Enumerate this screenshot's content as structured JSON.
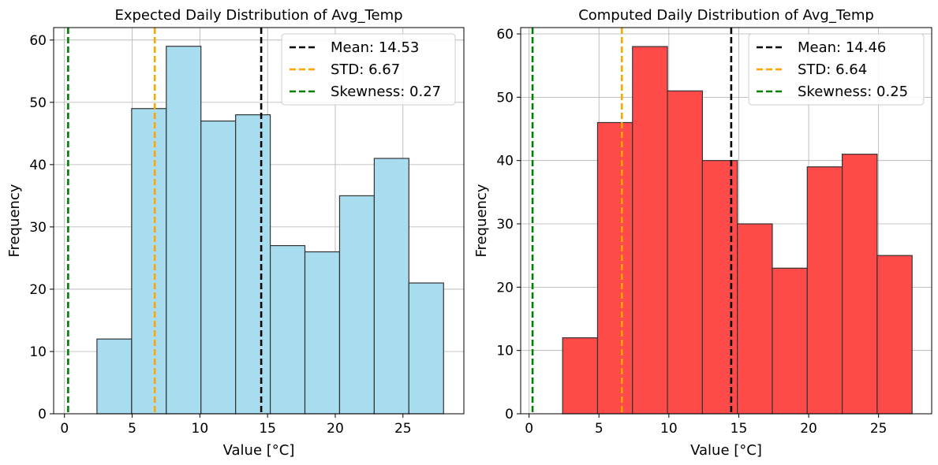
{
  "chart_data": [
    {
      "type": "bar",
      "title": "Expected Daily Distribution of Avg_Temp",
      "xlabel": "Value [°C]",
      "ylabel": "Frequency",
      "xlim": [
        -0.8,
        29.5
      ],
      "ylim": [
        0,
        62
      ],
      "xticks": [
        0,
        5,
        10,
        15,
        20,
        25
      ],
      "yticks": [
        0,
        10,
        20,
        30,
        40,
        50,
        60
      ],
      "grid": true,
      "legend_position": "top-right",
      "bar_color": "#a8dcef",
      "bin_edges": [
        2.4,
        4.96,
        7.52,
        10.08,
        12.64,
        15.2,
        17.76,
        20.32,
        22.88,
        25.44,
        28.0
      ],
      "values": [
        12,
        49,
        59,
        47,
        48,
        27,
        26,
        35,
        41,
        21
      ],
      "lines": [
        {
          "label": "Mean: 14.53",
          "x": 14.53,
          "color": "#000000"
        },
        {
          "label": "STD: 6.67",
          "x": 6.67,
          "color": "#ffa500"
        },
        {
          "label": "Skewness: 0.27",
          "x": 0.27,
          "color": "#008000"
        }
      ]
    },
    {
      "type": "bar",
      "title": "Computed Daily Distribution of Avg_Temp",
      "xlabel": "Value [°C]",
      "ylabel": "Frequency",
      "xlim": [
        -0.6,
        28.8
      ],
      "ylim": [
        0,
        61
      ],
      "xticks": [
        0,
        5,
        10,
        15,
        20,
        25
      ],
      "yticks": [
        0,
        10,
        20,
        30,
        40,
        50,
        60
      ],
      "grid": true,
      "legend_position": "top-right",
      "bar_color": "#ff4a4a",
      "bin_edges": [
        2.4,
        4.9,
        7.4,
        9.9,
        12.4,
        14.9,
        17.4,
        19.9,
        22.4,
        24.9,
        27.4
      ],
      "values": [
        12,
        46,
        58,
        51,
        40,
        30,
        23,
        39,
        41,
        25
      ],
      "lines": [
        {
          "label": "Mean: 14.46",
          "x": 14.46,
          "color": "#000000"
        },
        {
          "label": "STD: 6.64",
          "x": 6.64,
          "color": "#ffa500"
        },
        {
          "label": "Skewness: 0.25",
          "x": 0.25,
          "color": "#008000"
        }
      ]
    }
  ]
}
